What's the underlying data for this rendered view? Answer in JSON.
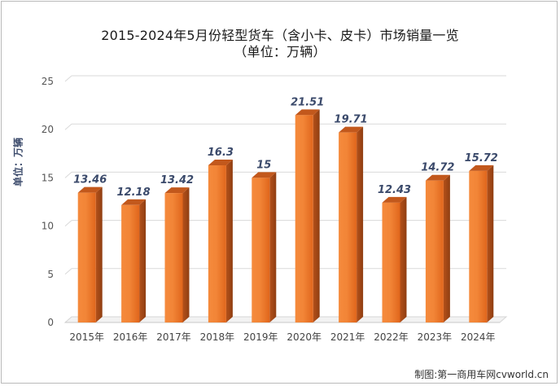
{
  "chart_data": {
    "type": "bar",
    "title_line1": "2015-2024年5月份轻型货车（含小卡、皮卡）市场销量一览",
    "title_line2": "（单位：万辆）",
    "ylabel": "单位：万辆",
    "xlabel": "",
    "categories": [
      "2015年",
      "2016年",
      "2017年",
      "2018年",
      "2019年",
      "2020年",
      "2021年",
      "2022年",
      "2023年",
      "2024年"
    ],
    "values": [
      13.46,
      12.18,
      13.42,
      16.3,
      15,
      21.51,
      19.71,
      12.43,
      14.72,
      15.72
    ],
    "value_labels": [
      "13.46",
      "12.18",
      "13.42",
      "16.3",
      "15",
      "21.51",
      "19.71",
      "12.43",
      "14.72",
      "15.72"
    ],
    "ylim": [
      0,
      25
    ],
    "yticks": [
      "0",
      "5",
      "10",
      "15",
      "20",
      "25"
    ],
    "ytick_values": [
      0,
      5,
      10,
      15,
      20,
      25
    ],
    "grid": true,
    "bar_color": "#f07d2e",
    "label_color": "#3b4a6b"
  },
  "footer": {
    "credit": "制图:第一商用车网cvworld.cn"
  }
}
